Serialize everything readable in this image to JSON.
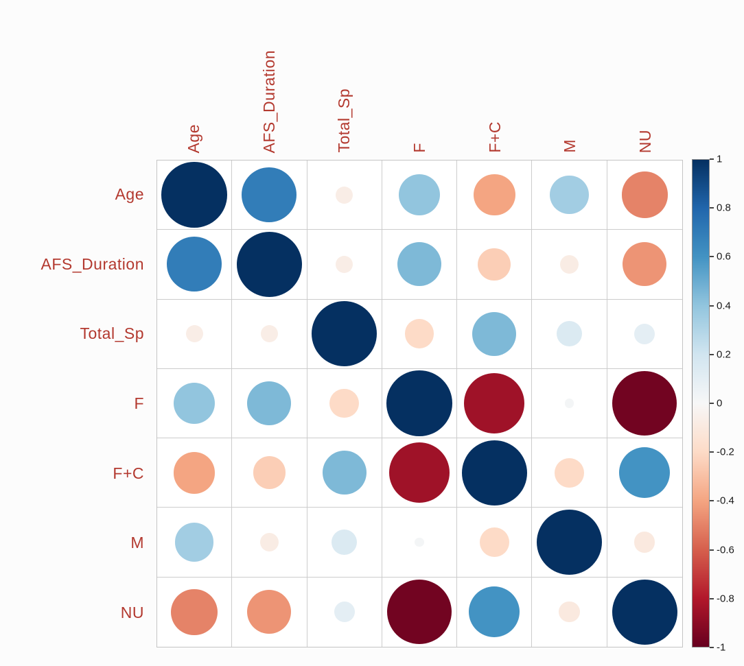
{
  "figure": {
    "background": "#fcfcfc",
    "variable_label_color": "#b3392f",
    "grid_line_color": "#cccccc",
    "grid_border_color": "#c4c4c4",
    "tick_label_color": "#1a1a1a"
  },
  "chart_data": {
    "type": "heatmap",
    "subtype": "correlation-matrix-circles",
    "title": "",
    "variables": [
      "Age",
      "AFS_Duration",
      "Total_Sp",
      "F",
      "F+C",
      "M",
      "NU"
    ],
    "matrix": [
      [
        1.0,
        0.7,
        -0.07,
        0.4,
        -0.4,
        0.35,
        -0.5
      ],
      [
        0.7,
        1.0,
        -0.07,
        0.45,
        -0.25,
        -0.08,
        -0.45
      ],
      [
        -0.07,
        -0.07,
        1.0,
        -0.2,
        0.45,
        0.15,
        0.1
      ],
      [
        0.4,
        0.45,
        -0.2,
        1.0,
        -0.85,
        0.02,
        -0.97
      ],
      [
        -0.4,
        -0.25,
        0.45,
        -0.85,
        1.0,
        -0.2,
        0.6
      ],
      [
        0.35,
        -0.08,
        0.15,
        0.02,
        -0.2,
        1.0,
        -0.1
      ],
      [
        -0.5,
        -0.45,
        0.1,
        -0.97,
        0.6,
        -0.1,
        1.0
      ]
    ],
    "colorbar": {
      "min": -1,
      "max": 1,
      "tick_values": [
        1,
        0.8,
        0.6,
        0.4,
        0.2,
        0,
        -0.2,
        -0.4,
        -0.6,
        -0.8,
        -1
      ],
      "tick_labels": [
        "1",
        "0.8",
        "0.6",
        "0.4",
        "0.2",
        "0",
        "-0.2",
        "-0.4",
        "-0.6",
        "-0.8",
        "-1"
      ],
      "position": "right"
    },
    "palette_stops_low_to_high": [
      "#67001F",
      "#B2182B",
      "#D6604D",
      "#F4A582",
      "#FDDBC7",
      "#F7F7F7",
      "#D1E5F0",
      "#92C5DE",
      "#4393C3",
      "#2166AC",
      "#053061"
    ],
    "legend_position": "right",
    "grid": true
  }
}
